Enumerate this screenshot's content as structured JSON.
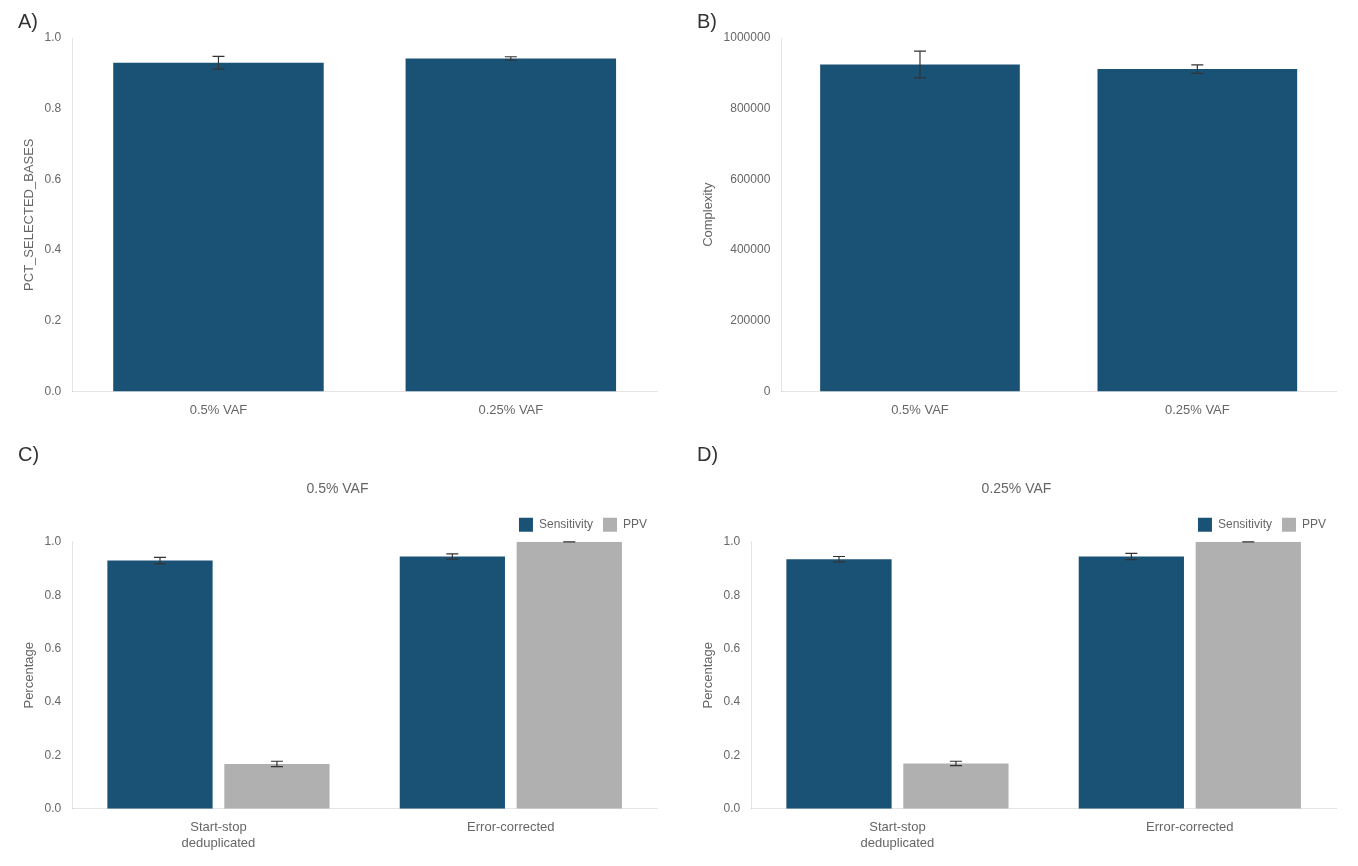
{
  "chart_data": [
    {
      "type": "bar",
      "annotation": "A)",
      "categories": [
        "0.5% VAF",
        "0.25% VAF"
      ],
      "values": [
        0.93,
        0.942
      ],
      "errors": [
        0.018,
        0.005
      ],
      "ylabel": "PCT_SELECTED_BASES",
      "ylim": [
        0.0,
        1.0
      ],
      "yticks": [
        {
          "value": 0.0,
          "label": "0.0"
        },
        0.2,
        0.4,
        0.6,
        0.8,
        {
          "value": 1.0,
          "label": "1.0"
        }
      ],
      "color": "#1a5276",
      "grid": false
    },
    {
      "type": "bar",
      "annotation": "B)",
      "categories": [
        "0.5% VAF",
        "0.25% VAF"
      ],
      "values": [
        925000,
        912000
      ],
      "errors": [
        38000,
        12000
      ],
      "ylabel": "Complexity",
      "ylim": [
        0,
        1000000
      ],
      "yticks": [
        0,
        200000,
        400000,
        600000,
        800000,
        1000000
      ],
      "color": "#1a5276",
      "grid": false
    },
    {
      "type": "bar",
      "annotation": "C)",
      "title": "0.5% VAF",
      "categories": [
        "Start-stop\ndeduplicated",
        "Error-corrected"
      ],
      "series": [
        {
          "name": "Sensitivity",
          "color": "#1a5276",
          "values": [
            0.93,
            0.945
          ],
          "errors": [
            0.012,
            0.01
          ]
        },
        {
          "name": "PPV",
          "color": "#b0b0b0",
          "values": [
            0.168,
            1.0
          ],
          "errors": [
            0.01,
            0.0
          ]
        }
      ],
      "ylabel": "Percentage",
      "ylim": [
        0.0,
        1.0
      ],
      "yticks": [
        {
          "value": 0.0,
          "label": "0.0"
        },
        0.2,
        0.4,
        0.6,
        0.8,
        {
          "value": 1.0,
          "label": "1.0"
        }
      ],
      "legend": "upper right",
      "grid": false
    },
    {
      "type": "bar",
      "annotation": "D)",
      "title": "0.25% VAF",
      "categories": [
        "Start-stop\ndeduplicated",
        "Error-corrected"
      ],
      "series": [
        {
          "name": "Sensitivity",
          "color": "#1a5276",
          "values": [
            0.935,
            0.945
          ],
          "errors": [
            0.01,
            0.012
          ]
        },
        {
          "name": "PPV",
          "color": "#b0b0b0",
          "values": [
            0.17,
            1.0
          ],
          "errors": [
            0.008,
            0.0
          ]
        }
      ],
      "ylabel": "Percentage",
      "ylim": [
        0.0,
        1.0
      ],
      "yticks": [
        {
          "value": 0.0,
          "label": "0.0"
        },
        0.2,
        0.4,
        0.6,
        0.8,
        {
          "value": 1.0,
          "label": "1.0"
        }
      ],
      "legend": "upper right",
      "grid": false
    }
  ]
}
